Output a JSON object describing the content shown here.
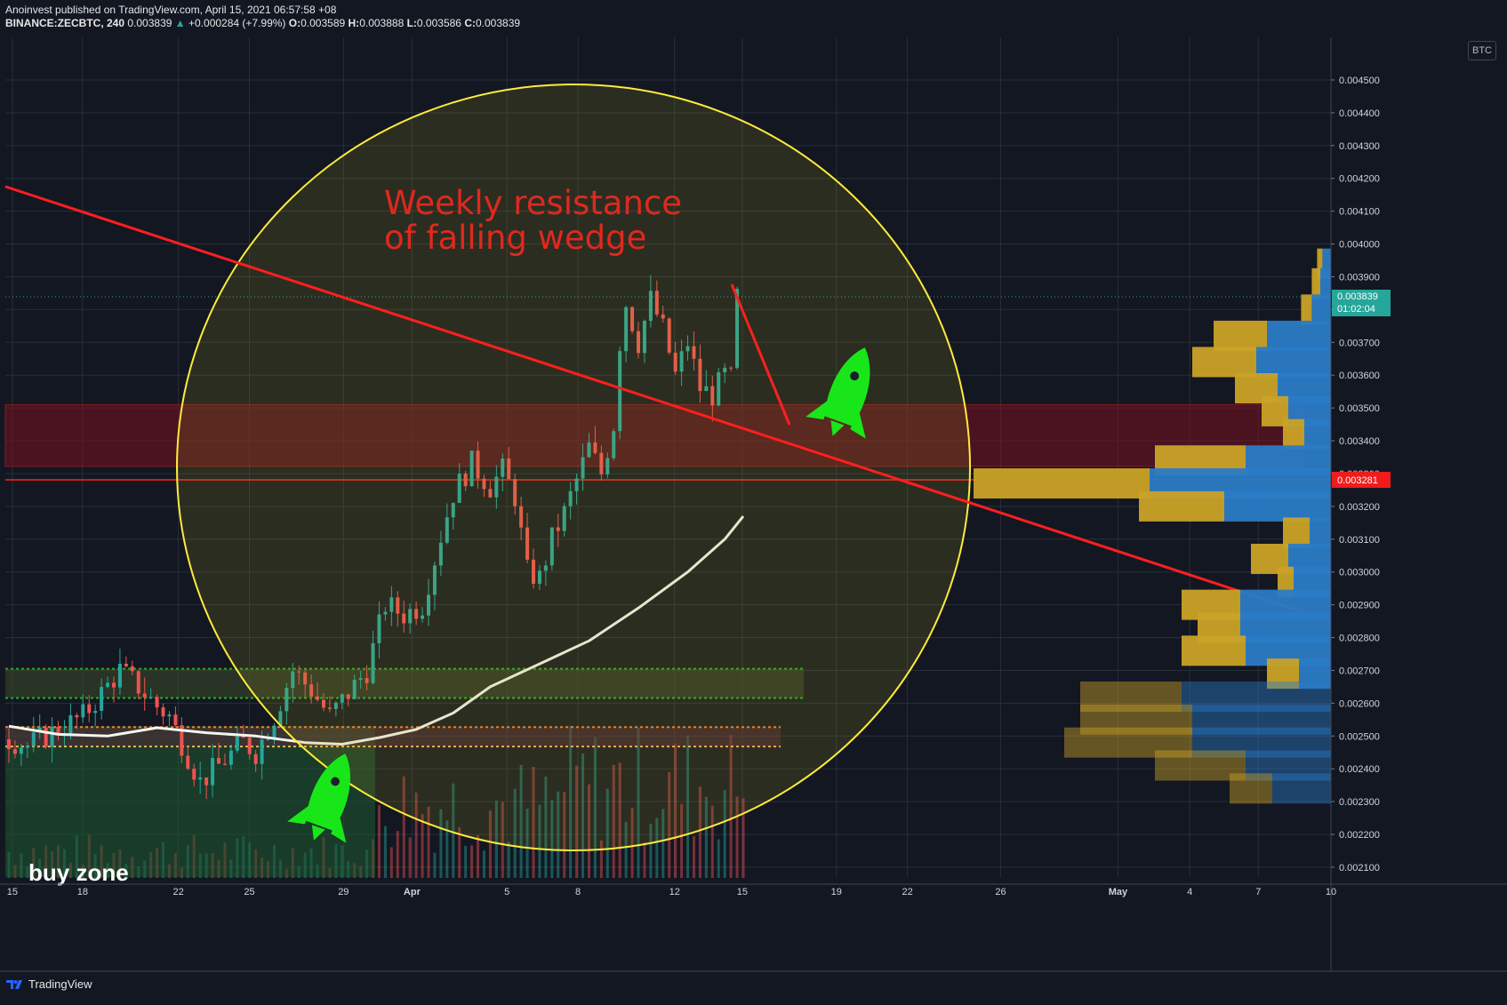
{
  "header": {
    "line1": "Anoinvest published on TradingView.com, April 15, 2021 06:57:58 +08",
    "symbol": "BINANCE:ZECBTC, 240",
    "last": "0.003839",
    "change": "+0.000284 (+7.99%)",
    "o_label": "O:",
    "o": "0.003589",
    "h_label": "H:",
    "h": "0.003888",
    "l_label": "L:",
    "l": "0.003586",
    "c_label": "C:",
    "c": "0.003839"
  },
  "currency_badge": "BTC",
  "footer": {
    "brand": "TradingView"
  },
  "chart_data": {
    "type": "candlestick",
    "x_ticks": [
      "15",
      "18",
      "22",
      "25",
      "29",
      "Apr",
      "5",
      "8",
      "12",
      "15",
      "19",
      "22",
      "26",
      "May",
      "4",
      "7",
      "10"
    ],
    "y_ticks": [
      "0.004500",
      "0.004400",
      "0.004300",
      "0.004200",
      "0.004100",
      "0.004000",
      "0.003900",
      "0.003800",
      "0.003700",
      "0.003600",
      "0.003500",
      "0.003400",
      "0.003300",
      "0.003200",
      "0.003100",
      "0.003000",
      "0.002900",
      "0.002800",
      "0.002700",
      "0.002600",
      "0.002500",
      "0.002400",
      "0.002300",
      "0.002200",
      "0.002100"
    ],
    "ylim": [
      0.00207,
      0.00463
    ],
    "last_price_label": "0.003839",
    "countdown_label": "01:02:04",
    "level_label": "0.003281",
    "annotations": {
      "wedge_text": [
        "Weekly resistance",
        "of falling wedge"
      ],
      "buy_zone": "buy zone"
    },
    "price_path": [
      [
        0.00249,
        0
      ],
      [
        0.00247,
        3
      ],
      [
        0.00252,
        8
      ],
      [
        0.00256,
        12
      ],
      [
        0.00263,
        15
      ],
      [
        0.0027,
        18
      ],
      [
        0.00265,
        21
      ],
      [
        0.00259,
        24
      ],
      [
        0.00256,
        26
      ],
      [
        0.00248,
        28
      ],
      [
        0.00236,
        31
      ],
      [
        0.00241,
        34
      ],
      [
        0.00248,
        38
      ],
      [
        0.00245,
        40
      ],
      [
        0.00256,
        43
      ],
      [
        0.0027,
        46
      ],
      [
        0.00264,
        49
      ],
      [
        0.00256,
        52
      ],
      [
        0.00263,
        55
      ],
      [
        0.0027,
        58
      ],
      [
        0.0029,
        61
      ],
      [
        0.00287,
        64
      ],
      [
        0.0029,
        67
      ],
      [
        0.00311,
        70
      ],
      [
        0.00324,
        72
      ],
      [
        0.00333,
        75
      ],
      [
        0.00326,
        78
      ],
      [
        0.00331,
        80
      ],
      [
        0.00323,
        82
      ],
      [
        0.003,
        84
      ],
      [
        0.00298,
        86
      ],
      [
        0.0031,
        88
      ],
      [
        0.00318,
        90
      ],
      [
        0.00328,
        92
      ],
      [
        0.00338,
        94
      ],
      [
        0.0033,
        96
      ],
      [
        0.00345,
        98
      ],
      [
        0.0037,
        99
      ],
      [
        0.00382,
        100
      ],
      [
        0.0037,
        102
      ],
      [
        0.00383,
        104
      ],
      [
        0.00374,
        106
      ],
      [
        0.0036,
        108
      ],
      [
        0.0037,
        110
      ],
      [
        0.00356,
        112
      ],
      [
        0.00354,
        114
      ],
      [
        0.0036,
        116
      ],
      [
        0.003589,
        117
      ],
      [
        0.003839,
        118
      ]
    ],
    "ma_path": [
      [
        0.00253,
        0
      ],
      [
        0.002505,
        8
      ],
      [
        0.0025,
        16
      ],
      [
        0.002525,
        24
      ],
      [
        0.00251,
        32
      ],
      [
        0.0025,
        40
      ],
      [
        0.00248,
        48
      ],
      [
        0.002475,
        54
      ],
      [
        0.002495,
        60
      ],
      [
        0.00252,
        66
      ],
      [
        0.00257,
        72
      ],
      [
        0.00265,
        78
      ],
      [
        0.00272,
        86
      ],
      [
        0.00279,
        94
      ],
      [
        0.00289,
        102
      ],
      [
        0.003,
        110
      ],
      [
        0.0031,
        116
      ],
      [
        0.00317,
        119
      ]
    ],
    "volume_profile": [
      {
        "price": 0.00394,
        "up": 5e-06,
        "down": 8e-06
      },
      {
        "price": 0.00388,
        "up": 8e-06,
        "down": 1e-05
      },
      {
        "price": 0.0038,
        "up": 1e-05,
        "down": 1.8e-05
      },
      {
        "price": 0.00372,
        "up": 5e-05,
        "down": 6e-05
      },
      {
        "price": 0.00364,
        "up": 6e-05,
        "down": 7e-05
      },
      {
        "price": 0.00356,
        "up": 4e-05,
        "down": 5e-05
      },
      {
        "price": 0.00349,
        "up": 2.5e-05,
        "down": 4e-05
      },
      {
        "price": 0.00342,
        "up": 2e-05,
        "down": 2.5e-05
      },
      {
        "price": 0.00334,
        "up": 8.5e-05,
        "down": 8e-05
      },
      {
        "price": 0.00327,
        "up": 0.000165,
        "down": 0.00017
      },
      {
        "price": 0.0032,
        "up": 8e-05,
        "down": 0.0001
      },
      {
        "price": 0.00312,
        "up": 2.5e-05,
        "down": 2e-05
      },
      {
        "price": 0.00304,
        "up": 3.5e-05,
        "down": 4e-05
      },
      {
        "price": 0.00297,
        "up": 1.5e-05,
        "down": 3.5e-05
      },
      {
        "price": 0.0029,
        "up": 5.5e-05,
        "down": 8.5e-05
      },
      {
        "price": 0.00283,
        "up": 4e-05,
        "down": 8.5e-05
      },
      {
        "price": 0.00276,
        "up": 6e-05,
        "down": 8e-05
      },
      {
        "price": 0.00269,
        "up": 3e-05,
        "down": 3e-05
      },
      {
        "price": 0.00262,
        "up": 9.5e-05,
        "down": 0.00014
      },
      {
        "price": 0.00255,
        "up": 0.000105,
        "down": 0.00013
      },
      {
        "price": 0.00248,
        "up": 0.00012,
        "down": 0.00013
      },
      {
        "price": 0.00241,
        "up": 8.5e-05,
        "down": 8e-05
      },
      {
        "price": 0.00234,
        "up": 4e-05,
        "down": 5.5e-05
      }
    ],
    "colors": {
      "up": "#26a69a",
      "down": "#ef5350",
      "ma": "#f5f5f0",
      "trend": "#ff1f1f",
      "circle": "#ffeb3b",
      "buy_zone": "#1f5a30",
      "profile_up": "#c9a227",
      "profile_down": "#2a7bc6"
    }
  }
}
